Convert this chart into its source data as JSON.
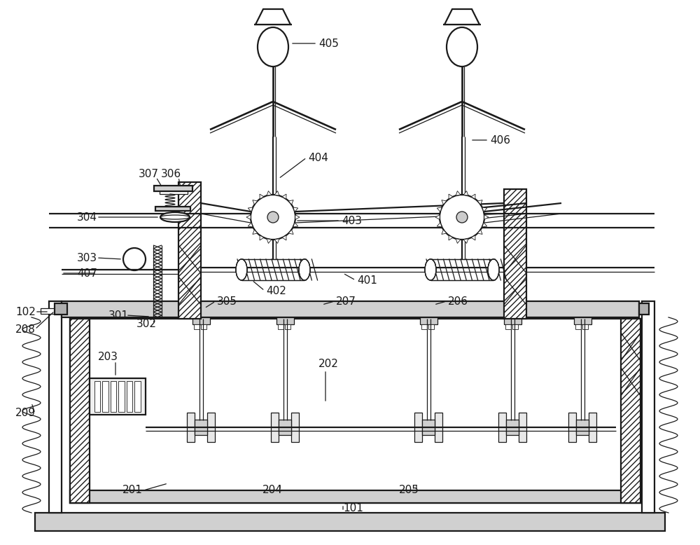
{
  "bg_color": "#ffffff",
  "line_color": "#1a1a1a",
  "label_color": "#000000",
  "fig_width": 10.0,
  "fig_height": 7.78,
  "lw_main": 1.6,
  "lw_thin": 0.9,
  "lw_thick": 2.2
}
